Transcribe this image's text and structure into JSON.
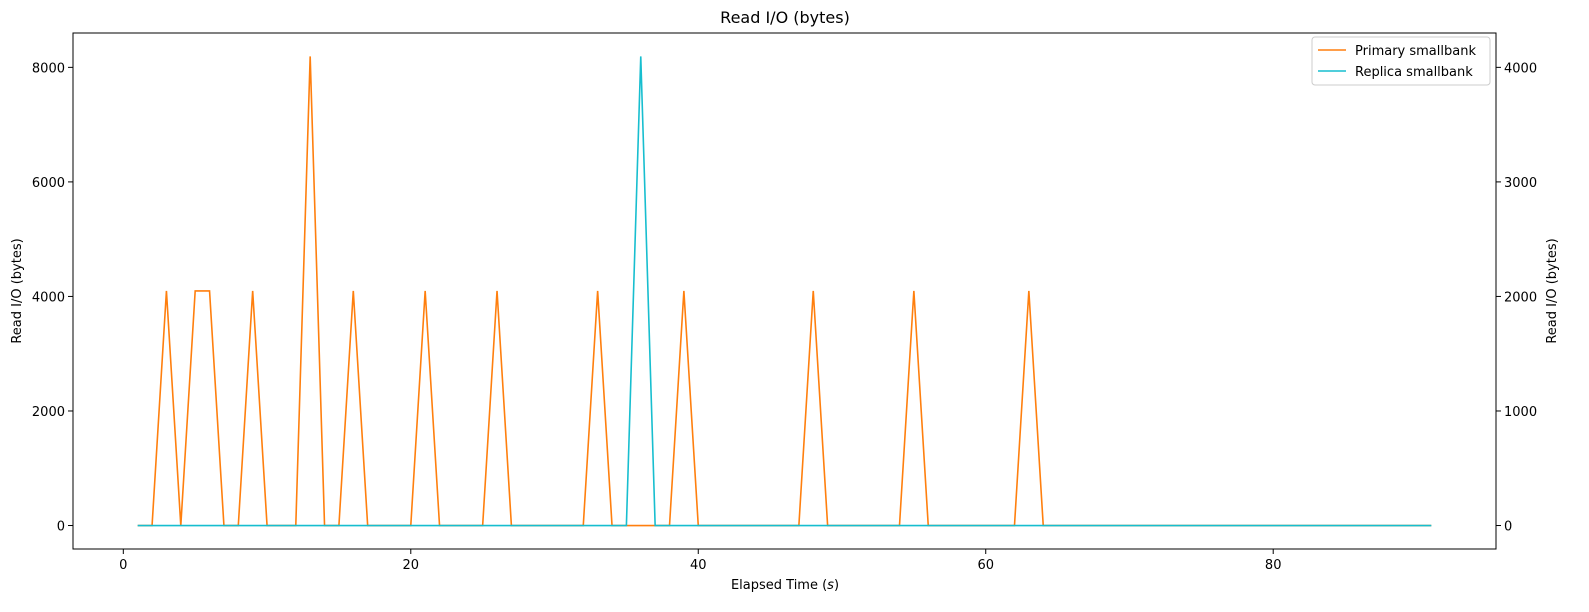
{
  "chart_data": {
    "type": "line",
    "title": "Read I/O (bytes)",
    "xlabel": "Elapsed Time (s)",
    "xlabel_prefix": "Elapsed Time (",
    "xlabel_var": "s",
    "xlabel_suffix": ")",
    "ylabel_left": "Read I/O (bytes)",
    "ylabel_right": "Read I/O (bytes)",
    "xlim": [
      -3.5,
      95.5
    ],
    "ylim_left": [
      -410,
      8600
    ],
    "ylim_right": [
      -205,
      4300
    ],
    "xticks": [
      0,
      20,
      40,
      60,
      80
    ],
    "yticks_left": [
      0,
      2000,
      4000,
      6000,
      8000
    ],
    "yticks_right": [
      0,
      1000,
      2000,
      3000,
      4000
    ],
    "grid": false,
    "legend_position": "top-right",
    "series": [
      {
        "name": "Primary smallbank",
        "axis": "left",
        "color": "#ff7f0e",
        "x": [
          1,
          2,
          3,
          4,
          5,
          6,
          7,
          8,
          9,
          10,
          11,
          12,
          13,
          14,
          15,
          16,
          17,
          18,
          19,
          20,
          21,
          22,
          23,
          24,
          25,
          26,
          27,
          28,
          29,
          30,
          31,
          32,
          33,
          34,
          35,
          36,
          37,
          38,
          39,
          40,
          41,
          42,
          43,
          44,
          45,
          46,
          47,
          48,
          49,
          50,
          51,
          52,
          53,
          54,
          55,
          56,
          57,
          58,
          59,
          60,
          61,
          62,
          63,
          64,
          65,
          66,
          67,
          68,
          69,
          70,
          71,
          72,
          73,
          74,
          75,
          76,
          77,
          78,
          79,
          80,
          81,
          82,
          83,
          84,
          85,
          86,
          87,
          88,
          89,
          90,
          91
        ],
        "y": [
          0,
          0,
          4096,
          0,
          4096,
          4096,
          0,
          0,
          4096,
          0,
          0,
          0,
          8192,
          0,
          0,
          4096,
          0,
          0,
          0,
          0,
          4096,
          0,
          0,
          0,
          0,
          4096,
          0,
          0,
          0,
          0,
          0,
          0,
          4096,
          0,
          0,
          0,
          0,
          0,
          4096,
          0,
          0,
          0,
          0,
          0,
          0,
          0,
          0,
          4096,
          0,
          0,
          0,
          0,
          0,
          0,
          4096,
          0,
          0,
          0,
          0,
          0,
          0,
          0,
          4096,
          0,
          0,
          0,
          0,
          0,
          0,
          0,
          0,
          0,
          0,
          0,
          0,
          0,
          0,
          0,
          0,
          0,
          0,
          0,
          0,
          0,
          0,
          0,
          0,
          0,
          0,
          0,
          0
        ]
      },
      {
        "name": "Replica smallbank",
        "axis": "right",
        "color": "#17becf",
        "x": [
          1,
          2,
          3,
          4,
          5,
          6,
          7,
          8,
          9,
          10,
          11,
          12,
          13,
          14,
          15,
          16,
          17,
          18,
          19,
          20,
          21,
          22,
          23,
          24,
          25,
          26,
          27,
          28,
          29,
          30,
          31,
          32,
          33,
          34,
          35,
          36,
          37,
          38,
          39,
          40,
          41,
          42,
          43,
          44,
          45,
          46,
          47,
          48,
          49,
          50,
          51,
          52,
          53,
          54,
          55,
          56,
          57,
          58,
          59,
          60,
          61,
          62,
          63,
          64,
          65,
          66,
          67,
          68,
          69,
          70,
          71,
          72,
          73,
          74,
          75,
          76,
          77,
          78,
          79,
          80,
          81,
          82,
          83,
          84,
          85,
          86,
          87,
          88,
          89,
          90,
          91
        ],
        "y": [
          0,
          0,
          0,
          0,
          0,
          0,
          0,
          0,
          0,
          0,
          0,
          0,
          0,
          0,
          0,
          0,
          0,
          0,
          0,
          0,
          0,
          0,
          0,
          0,
          0,
          0,
          0,
          0,
          0,
          0,
          0,
          0,
          0,
          0,
          0,
          4096,
          0,
          0,
          0,
          0,
          0,
          0,
          0,
          0,
          0,
          0,
          0,
          0,
          0,
          0,
          0,
          0,
          0,
          0,
          0,
          0,
          0,
          0,
          0,
          0,
          0,
          0,
          0,
          0,
          0,
          0,
          0,
          0,
          0,
          0,
          0,
          0,
          0,
          0,
          0,
          0,
          0,
          0,
          0,
          0,
          0,
          0,
          0,
          0,
          0,
          0,
          0,
          0,
          0,
          0,
          0
        ]
      }
    ]
  }
}
